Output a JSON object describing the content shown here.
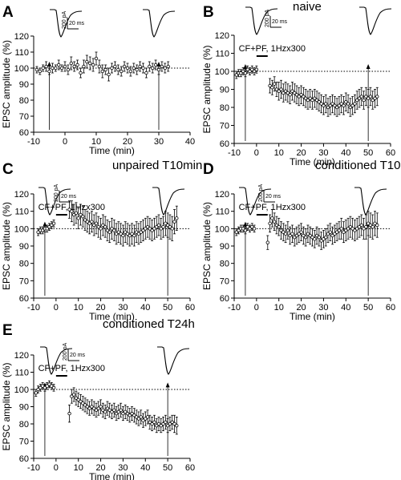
{
  "chart_data": [
    {
      "type": "scatter",
      "panel_letter": "A",
      "title": "",
      "xlabel": "Time (min)",
      "ylabel": "EPSC amplitude (%)",
      "xlim": [
        -10,
        40
      ],
      "ylim": [
        60,
        120
      ],
      "xticks": [
        -10,
        0,
        10,
        20,
        30,
        40
      ],
      "yticks": [
        60,
        70,
        80,
        90,
        100,
        110,
        120
      ],
      "xtick_labels": [
        "-10",
        "0",
        "10",
        "20",
        "30",
        "40"
      ],
      "ytick_labels": [
        "60",
        "70",
        "80",
        "90",
        "100",
        "110",
        "120"
      ],
      "baseline": 100,
      "stimulus": null,
      "arrows_at": [
        -5,
        30
      ],
      "scale_bar": {
        "amplitude": "200 pA",
        "time": "20 ms"
      },
      "series": [
        {
          "x": [
            -9,
            -8,
            -7,
            -6,
            -5,
            -4,
            -3,
            -2,
            -1,
            0,
            1,
            2,
            3,
            4,
            5,
            6,
            7,
            8,
            9,
            10,
            11,
            12,
            13,
            14,
            15,
            16,
            17,
            18,
            19,
            20,
            21,
            22,
            23,
            24,
            25,
            26,
            27,
            28,
            29,
            30,
            31,
            32,
            33
          ],
          "y": [
            99,
            98,
            100,
            101,
            98,
            100,
            100,
            102,
            100,
            101,
            99,
            103,
            101,
            102,
            97,
            101,
            104,
            103,
            102,
            106,
            101,
            98,
            99,
            96,
            100,
            101,
            99,
            98,
            101,
            100,
            98,
            100,
            99,
            101,
            100,
            97,
            101,
            100,
            102,
            99,
            101,
            100,
            101
          ],
          "error": [
            2,
            2,
            2,
            3,
            2,
            3,
            2,
            3,
            2,
            3,
            3,
            4,
            3,
            3,
            3,
            4,
            4,
            4,
            4,
            4,
            4,
            4,
            3,
            4,
            3,
            3,
            3,
            3,
            3,
            3,
            3,
            3,
            3,
            3,
            3,
            3,
            3,
            3,
            3,
            3,
            3,
            3,
            3
          ]
        }
      ]
    },
    {
      "type": "scatter",
      "panel_letter": "B",
      "title": "naive",
      "xlabel": "Time (min)",
      "ylabel": "EPSC amplitude (%)",
      "xlim": [
        -10,
        60
      ],
      "ylim": [
        60,
        120
      ],
      "xticks": [
        -10,
        0,
        10,
        20,
        30,
        40,
        50,
        60
      ],
      "yticks": [
        60,
        70,
        80,
        90,
        100,
        110,
        120
      ],
      "xtick_labels": [
        "-10",
        "0",
        "10",
        "20",
        "30",
        "40",
        "50",
        "60"
      ],
      "ytick_labels": [
        "60",
        "70",
        "80",
        "90",
        "100",
        "110",
        "120"
      ],
      "baseline": 100,
      "stimulus": {
        "label": "CF+PF, 1Hzx300",
        "start": 0,
        "end": 5
      },
      "arrows_at": [
        -5,
        50
      ],
      "scale_bar": {
        "amplitude": "200 pA",
        "time": "20 ms"
      },
      "series": [
        {
          "x": [
            -9,
            -8,
            -7,
            -6,
            -5,
            -4,
            -3,
            -2,
            -1,
            0,
            6,
            7,
            8,
            9,
            10,
            11,
            12,
            13,
            14,
            15,
            16,
            17,
            18,
            19,
            20,
            21,
            22,
            23,
            24,
            25,
            26,
            27,
            28,
            29,
            30,
            31,
            32,
            33,
            34,
            35,
            36,
            37,
            38,
            39,
            40,
            41,
            42,
            43,
            44,
            45,
            46,
            47,
            48,
            49,
            50,
            51,
            52,
            53,
            54
          ],
          "y": [
            98,
            99,
            99,
            100,
            99,
            101,
            100,
            101,
            100,
            101,
            92,
            91,
            93,
            90,
            89,
            90,
            88,
            89,
            88,
            87,
            89,
            88,
            87,
            86,
            87,
            86,
            85,
            84,
            85,
            84,
            85,
            84,
            83,
            82,
            81,
            82,
            80,
            81,
            82,
            81,
            80,
            81,
            82,
            81,
            83,
            82,
            80,
            81,
            82,
            84,
            85,
            86,
            84,
            86,
            85,
            86,
            84,
            85,
            86
          ],
          "error": [
            2,
            2,
            2,
            2,
            2,
            2,
            2,
            2,
            2,
            2,
            4,
            4,
            4,
            4,
            5,
            5,
            5,
            5,
            5,
            5,
            5,
            5,
            5,
            5,
            5,
            5,
            5,
            5,
            5,
            5,
            5,
            5,
            5,
            5,
            5,
            5,
            5,
            5,
            5,
            5,
            5,
            5,
            5,
            5,
            5,
            5,
            5,
            5,
            5,
            5,
            5,
            5,
            5,
            5,
            5,
            5,
            5,
            5,
            5
          ]
        }
      ]
    },
    {
      "type": "scatter",
      "panel_letter": "C",
      "title": "unpaired T10min",
      "xlabel": "Time (min)",
      "ylabel": "EPSC amplitude (%)",
      "xlim": [
        -10,
        60
      ],
      "ylim": [
        60,
        120
      ],
      "xticks": [
        -10,
        0,
        10,
        20,
        30,
        40,
        50,
        60
      ],
      "yticks": [
        60,
        70,
        80,
        90,
        100,
        110,
        120
      ],
      "xtick_labels": [
        "-10",
        "0",
        "10",
        "20",
        "30",
        "40",
        "50",
        "60"
      ],
      "ytick_labels": [
        "60",
        "70",
        "80",
        "90",
        "100",
        "110",
        "120"
      ],
      "baseline": 100,
      "stimulus": {
        "label": "CF+PF, 1Hzx300",
        "start": 0,
        "end": 5
      },
      "arrows_at": [
        -5,
        50
      ],
      "scale_bar": {
        "amplitude": "200 pA",
        "time": "20 ms"
      },
      "series": [
        {
          "x": [
            -8,
            -7,
            -6,
            -5,
            -4,
            -3,
            -2,
            -1,
            6,
            7,
            8,
            9,
            10,
            11,
            12,
            13,
            14,
            15,
            16,
            17,
            18,
            19,
            20,
            21,
            22,
            23,
            24,
            25,
            26,
            27,
            28,
            29,
            30,
            31,
            32,
            33,
            34,
            35,
            36,
            37,
            38,
            39,
            40,
            41,
            42,
            43,
            44,
            45,
            46,
            47,
            48,
            49,
            50,
            51,
            52,
            53,
            54
          ],
          "y": [
            98,
            99,
            99,
            100,
            100,
            101,
            102,
            103,
            111,
            110,
            108,
            109,
            106,
            108,
            107,
            105,
            104,
            103,
            104,
            102,
            103,
            101,
            100,
            102,
            101,
            99,
            98,
            100,
            99,
            97,
            98,
            97,
            96,
            98,
            97,
            96,
            97,
            96,
            98,
            97,
            98,
            99,
            100,
            101,
            100,
            99,
            100,
            101,
            102,
            100,
            101,
            103,
            102,
            101,
            100,
            104,
            106
          ],
          "error": [
            2,
            2,
            2,
            2,
            2,
            2,
            2,
            2,
            5,
            6,
            6,
            6,
            6,
            6,
            6,
            6,
            6,
            6,
            6,
            6,
            6,
            6,
            6,
            6,
            6,
            6,
            6,
            6,
            6,
            6,
            6,
            6,
            6,
            6,
            6,
            6,
            6,
            6,
            6,
            6,
            6,
            6,
            6,
            6,
            6,
            6,
            6,
            6,
            6,
            6,
            6,
            7,
            7,
            7,
            7,
            7,
            7
          ]
        }
      ]
    },
    {
      "type": "scatter",
      "panel_letter": "D",
      "title": "conditioned T10min",
      "xlabel": "Time (min)",
      "ylabel": "EPSC amplitude (%)",
      "xlim": [
        -10,
        60
      ],
      "ylim": [
        60,
        120
      ],
      "xticks": [
        -10,
        0,
        10,
        20,
        30,
        40,
        50,
        60
      ],
      "yticks": [
        60,
        70,
        80,
        90,
        100,
        110,
        120
      ],
      "xtick_labels": [
        "-10",
        "0",
        "10",
        "20",
        "30",
        "40",
        "50",
        "60"
      ],
      "ytick_labels": [
        "60",
        "70",
        "80",
        "90",
        "100",
        "110",
        "120"
      ],
      "baseline": 100,
      "stimulus": {
        "label": "CF+PF, 1Hzx300",
        "start": 0,
        "end": 5
      },
      "arrows_at": [
        -5,
        50
      ],
      "scale_bar": {
        "amplitude": "200 pA",
        "time": "20 ms"
      },
      "series": [
        {
          "x": [
            -9,
            -8,
            -7,
            -6,
            -5,
            -4,
            -3,
            -2,
            -1,
            5,
            6,
            7,
            8,
            9,
            10,
            11,
            12,
            13,
            14,
            15,
            16,
            17,
            18,
            19,
            20,
            21,
            22,
            23,
            24,
            25,
            26,
            27,
            28,
            29,
            30,
            31,
            32,
            33,
            34,
            35,
            36,
            37,
            38,
            39,
            40,
            41,
            42,
            43,
            44,
            45,
            46,
            47,
            48,
            49,
            50,
            51,
            52,
            53,
            54
          ],
          "y": [
            98,
            99,
            100,
            100,
            99,
            101,
            100,
            101,
            100,
            92,
            103,
            106,
            104,
            102,
            101,
            99,
            98,
            97,
            99,
            96,
            97,
            95,
            96,
            97,
            98,
            96,
            95,
            97,
            96,
            95,
            94,
            96,
            95,
            93,
            94,
            95,
            97,
            98,
            96,
            97,
            98,
            99,
            100,
            98,
            99,
            100,
            101,
            100,
            99,
            100,
            101,
            102,
            100,
            101,
            103,
            102,
            101,
            103,
            102
          ],
          "error": [
            2,
            2,
            2,
            2,
            2,
            2,
            2,
            2,
            2,
            4,
            5,
            5,
            5,
            5,
            5,
            5,
            5,
            5,
            5,
            5,
            5,
            5,
            5,
            5,
            5,
            5,
            5,
            5,
            5,
            5,
            5,
            5,
            5,
            5,
            5,
            5,
            5,
            5,
            5,
            5,
            5,
            5,
            6,
            6,
            6,
            6,
            6,
            6,
            6,
            6,
            6,
            6,
            6,
            7,
            7,
            7,
            7,
            7,
            7
          ]
        }
      ]
    },
    {
      "type": "scatter",
      "panel_letter": "E",
      "title": "conditioned T24h",
      "xlabel": "Time (min)",
      "ylabel": "EPSC amplitude (%)",
      "xlim": [
        -10,
        60
      ],
      "ylim": [
        60,
        120
      ],
      "xticks": [
        -10,
        0,
        10,
        20,
        30,
        40,
        50,
        60
      ],
      "yticks": [
        60,
        70,
        80,
        90,
        100,
        110,
        120
      ],
      "xtick_labels": [
        "-10",
        "0",
        "10",
        "20",
        "30",
        "40",
        "50",
        "60"
      ],
      "ytick_labels": [
        "60",
        "70",
        "80",
        "90",
        "100",
        "110",
        "120"
      ],
      "baseline": 100,
      "stimulus": {
        "label": "CF+PF, 1Hzx300",
        "start": 0,
        "end": 5
      },
      "arrows_at": [
        -5,
        50
      ],
      "scale_bar": {
        "amplitude": "200 pA",
        "time": "20 ms"
      },
      "series": [
        {
          "x": [
            -9,
            -8,
            -7,
            -6,
            -5,
            -4,
            -3,
            -2,
            -1,
            6,
            7,
            8,
            9,
            10,
            11,
            12,
            13,
            14,
            15,
            16,
            17,
            18,
            19,
            20,
            21,
            22,
            23,
            24,
            25,
            26,
            27,
            28,
            29,
            30,
            31,
            32,
            33,
            34,
            35,
            36,
            37,
            38,
            39,
            40,
            41,
            42,
            43,
            44,
            45,
            46,
            47,
            48,
            49,
            50,
            51,
            52,
            53,
            54
          ],
          "y": [
            98,
            100,
            101,
            102,
            101,
            102,
            103,
            102,
            101,
            86,
            96,
            97,
            95,
            94,
            93,
            92,
            91,
            90,
            89,
            90,
            89,
            88,
            89,
            90,
            88,
            87,
            89,
            88,
            87,
            88,
            86,
            87,
            88,
            86,
            87,
            86,
            85,
            86,
            85,
            84,
            83,
            84,
            82,
            83,
            84,
            81,
            80,
            81,
            79,
            80,
            79,
            80,
            81,
            79,
            80,
            81,
            80,
            79
          ],
          "error": [
            2,
            2,
            2,
            2,
            2,
            2,
            2,
            2,
            2,
            5,
            4,
            4,
            4,
            4,
            4,
            4,
            4,
            4,
            4,
            4,
            4,
            4,
            4,
            4,
            4,
            4,
            4,
            4,
            4,
            4,
            4,
            4,
            4,
            4,
            4,
            4,
            4,
            4,
            4,
            4,
            4,
            4,
            4,
            4,
            4,
            4,
            4,
            4,
            4,
            4,
            4,
            4,
            4,
            4,
            4,
            4,
            5,
            5
          ]
        }
      ]
    }
  ]
}
